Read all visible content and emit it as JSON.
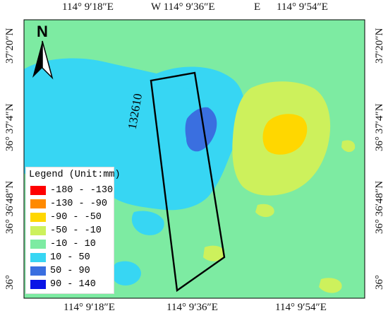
{
  "map": {
    "colors": {
      "background": "#7deba2",
      "class_10_50": "#37d6f3",
      "class_50_90": "#3a6fe0",
      "class_neg50_neg10": "#cdf15c",
      "class_neg90_neg50": "#ffd700",
      "strip_outline": "#000000"
    },
    "strip_label": "132610"
  },
  "axes": {
    "top": [
      {
        "text": "114° 9′18″E"
      },
      {
        "text": "W 114° 9′36″E"
      },
      {
        "text": "E"
      },
      {
        "text": "114° 9′54″E"
      }
    ],
    "bottom": [
      {
        "text": "114° 9′18″E"
      },
      {
        "text": "114° 9′36″E"
      },
      {
        "text": "114° 9′54″E"
      }
    ],
    "left": [
      {
        "text": "37′20″N"
      },
      {
        "text": "36° 37′4″N"
      },
      {
        "text": "36° 36′48″N"
      },
      {
        "text": "36° "
      }
    ],
    "right": [
      {
        "text": "37′20″N"
      },
      {
        "text": "36° 37′4″N"
      },
      {
        "text": "36° 36′48″N"
      },
      {
        "text": "36° "
      }
    ]
  },
  "north_arrow": {
    "label": "N",
    "icon": "north-arrow-icon"
  },
  "legend": {
    "title": "Legend (Unit:mm)",
    "items": [
      {
        "label": "-180 - -130",
        "color": "#ff0000"
      },
      {
        "label": "-130 - -90",
        "color": "#ff8a00"
      },
      {
        "label": "-90 - -50",
        "color": "#ffd700"
      },
      {
        "label": "-50 - -10",
        "color": "#cdf15c"
      },
      {
        "label": "-10 - 10",
        "color": "#7deba2"
      },
      {
        "label": "10 - 50",
        "color": "#37d6f3"
      },
      {
        "label": "50 - 90",
        "color": "#3a6fe0"
      },
      {
        "label": "90 - 140",
        "color": "#0a14e6"
      }
    ]
  }
}
